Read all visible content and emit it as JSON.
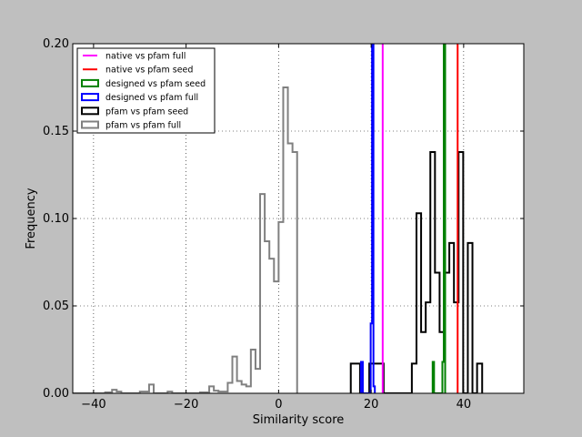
{
  "chart_data": {
    "type": "histogram",
    "xlabel": "Similarity score",
    "ylabel": "Frequency",
    "xlim": [
      -44.5,
      53
    ],
    "ylim": [
      0,
      0.2
    ],
    "grid": true,
    "legend_position": "top-left",
    "x_ticks": [
      -40,
      -20,
      0,
      20,
      40
    ],
    "x_tick_labels": [
      "−40",
      "−20",
      "0",
      "20",
      "40"
    ],
    "y_ticks": [
      0,
      0.05,
      0.1,
      0.15,
      0.2
    ],
    "y_tick_labels": [
      "0.00",
      "0.05",
      "0.10",
      "0.15",
      "0.20"
    ],
    "legend": [
      {
        "label": "native vs pfam full",
        "color": "#ff00ff",
        "kind": "line"
      },
      {
        "label": "native vs pfam seed",
        "color": "#ff0000",
        "kind": "line"
      },
      {
        "label": "designed vs pfam seed",
        "color": "#008000",
        "kind": "box"
      },
      {
        "label": "designed vs pfam full",
        "color": "#0000ff",
        "kind": "box"
      },
      {
        "label": "pfam vs pfam seed",
        "color": "#000000",
        "kind": "box"
      },
      {
        "label": "pfam vs pfam full",
        "color": "#808080",
        "kind": "box"
      }
    ],
    "vlines": [
      {
        "name": "native vs pfam full",
        "x": 22.5,
        "color": "#ff00ff"
      },
      {
        "name": "native vs pfam seed",
        "x": 38.7,
        "color": "#ff0000"
      }
    ],
    "series": [
      {
        "name": "pfam vs pfam full",
        "color": "#808080",
        "width": 2,
        "bins": [
          [
            -44.5,
            -37.5,
            0.0
          ],
          [
            -37.5,
            -36.0,
            0.0005
          ],
          [
            -36.0,
            -35.0,
            0.002
          ],
          [
            -35.0,
            -34.0,
            0.001
          ],
          [
            -34.0,
            -30.0,
            0.0
          ],
          [
            -30.0,
            -28.0,
            0.001
          ],
          [
            -28.0,
            -27.0,
            0.005
          ],
          [
            -27.0,
            -24.0,
            0.0
          ],
          [
            -24.0,
            -23.0,
            0.001
          ],
          [
            -23.0,
            -17.0,
            0.0
          ],
          [
            -17.0,
            -15.0,
            0.0005
          ],
          [
            -15.0,
            -14.0,
            0.004
          ],
          [
            -14.0,
            -13.0,
            0.0015
          ],
          [
            -13.0,
            -11.0,
            0.001
          ],
          [
            -11.0,
            -10.0,
            0.006
          ],
          [
            -10.0,
            -9.0,
            0.021
          ],
          [
            -9.0,
            -8.0,
            0.007
          ],
          [
            -8.0,
            -7.0,
            0.005
          ],
          [
            -7.0,
            -6.0,
            0.004
          ],
          [
            -6.0,
            -5.0,
            0.025
          ],
          [
            -5.0,
            -4.0,
            0.014
          ],
          [
            -4.0,
            -3.0,
            0.114
          ],
          [
            -3.0,
            -2.0,
            0.087
          ],
          [
            -2.0,
            -1.0,
            0.077
          ],
          [
            -1.0,
            0.0,
            0.064
          ],
          [
            0.0,
            1.0,
            0.098
          ],
          [
            1.0,
            2.0,
            0.175
          ],
          [
            2.0,
            3.0,
            0.143
          ],
          [
            3.0,
            4.0,
            0.138
          ]
        ]
      },
      {
        "name": "pfam vs pfam seed",
        "color": "#000000",
        "width": 2,
        "bins": [
          [
            15.6,
            17.6,
            0.017
          ],
          [
            17.6,
            19.6,
            0.0
          ],
          [
            19.6,
            20.7,
            0.017
          ],
          [
            20.7,
            22.7,
            0.017
          ],
          [
            22.7,
            28.8,
            0.0
          ],
          [
            28.8,
            29.8,
            0.017
          ],
          [
            29.8,
            30.8,
            0.103
          ],
          [
            30.8,
            31.8,
            0.035
          ],
          [
            31.8,
            32.8,
            0.052
          ],
          [
            32.8,
            33.8,
            0.138
          ],
          [
            33.8,
            34.8,
            0.069
          ],
          [
            34.8,
            35.8,
            0.035
          ],
          [
            35.8,
            36.9,
            0.069
          ],
          [
            36.9,
            37.9,
            0.086
          ],
          [
            37.9,
            38.9,
            0.052
          ],
          [
            38.9,
            39.9,
            0.138
          ],
          [
            39.9,
            40.9,
            0.0
          ],
          [
            40.9,
            41.9,
            0.086
          ],
          [
            41.9,
            42.9,
            0.0
          ],
          [
            42.9,
            44.0,
            0.017
          ]
        ]
      },
      {
        "name": "designed vs pfam seed",
        "color": "#008000",
        "width": 2,
        "bins": [
          [
            33.3,
            33.6,
            0.018
          ],
          [
            33.6,
            35.4,
            0.0
          ],
          [
            35.4,
            35.7,
            0.018
          ],
          [
            35.7,
            36.0,
            0.2
          ]
        ]
      },
      {
        "name": "designed vs pfam full",
        "color": "#0000ff",
        "width": 2,
        "bins": [
          [
            17.8,
            18.2,
            0.018
          ],
          [
            18.2,
            19.9,
            0.0
          ],
          [
            19.9,
            20.2,
            0.04
          ],
          [
            20.2,
            20.5,
            0.2
          ],
          [
            20.5,
            20.8,
            0.004
          ]
        ]
      }
    ]
  }
}
